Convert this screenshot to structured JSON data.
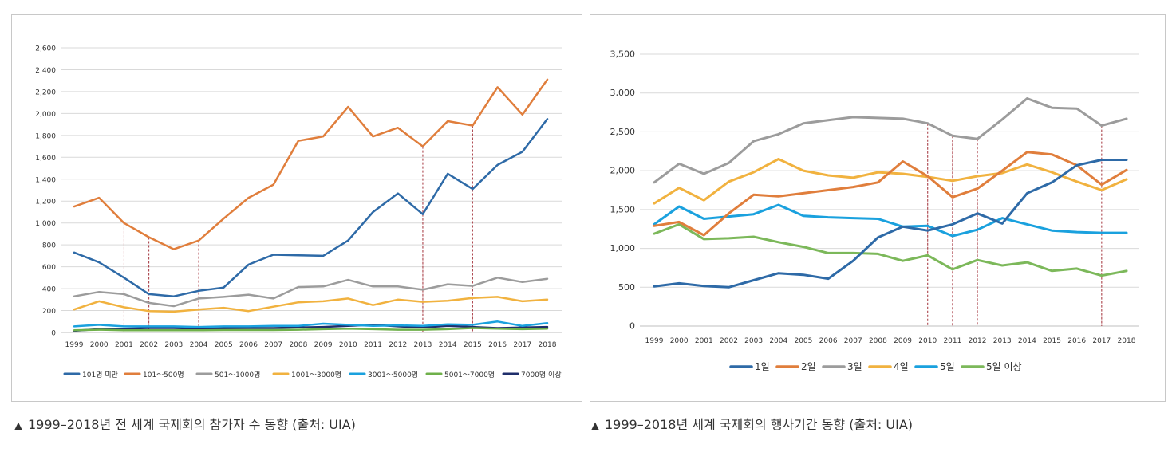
{
  "charts": [
    {
      "caption": "1999–2018년 전 세계 국제회의 참가자 수 동향 (출처: UIA)",
      "caption_marker": "▲",
      "chart_data": {
        "type": "line",
        "x": [
          "1999",
          "2000",
          "2001",
          "2002",
          "2003",
          "2004",
          "2005",
          "2006",
          "2007",
          "2008",
          "2009",
          "2010",
          "2011",
          "2012",
          "2013",
          "2014",
          "2015",
          "2016",
          "2017",
          "2018"
        ],
        "ylim": [
          0,
          2600
        ],
        "yticks": [
          0,
          200,
          400,
          600,
          800,
          1000,
          1200,
          1400,
          1600,
          1800,
          2000,
          2200,
          2400,
          2600
        ],
        "ytick_labels": [
          "0",
          "200",
          "400",
          "600",
          "800",
          "1,000",
          "1,200",
          "1,400",
          "1,600",
          "1,800",
          "2,000",
          "2,200",
          "2,400",
          "2,600"
        ],
        "grid": true,
        "legend_position": "bottom",
        "marked_years": [
          "2001",
          "2002",
          "2004",
          "2013",
          "2015"
        ],
        "marked_series": "101～500명",
        "series": [
          {
            "name": "101명 미만",
            "color": "#2e6aa7",
            "values": [
              730,
              640,
              500,
              350,
              330,
              380,
              410,
              620,
              710,
              705,
              700,
              840,
              1100,
              1270,
              1080,
              1450,
              1310,
              1530,
              1650,
              1950
            ]
          },
          {
            "name": "101～500명",
            "color": "#e07e3c",
            "values": [
              1150,
              1230,
              1000,
              870,
              760,
              840,
              1040,
              1230,
              1350,
              1750,
              1790,
              2060,
              1790,
              1870,
              1700,
              1930,
              1890,
              2240,
              1990,
              2310
            ]
          },
          {
            "name": "501～1000명",
            "color": "#9c9c9c",
            "values": [
              330,
              370,
              350,
              270,
              240,
              310,
              325,
              345,
              310,
              415,
              420,
              480,
              420,
              420,
              390,
              440,
              425,
              500,
              460,
              490
            ]
          },
          {
            "name": "1001～3000명",
            "color": "#f1b23f",
            "values": [
              210,
              285,
              230,
              195,
              190,
              210,
              225,
              195,
              235,
              275,
              285,
              310,
              250,
              300,
              280,
              290,
              315,
              325,
              285,
              300
            ]
          },
          {
            "name": "3001～5000명",
            "color": "#1aa1de",
            "values": [
              55,
              70,
              55,
              55,
              55,
              50,
              55,
              55,
              60,
              60,
              80,
              70,
              60,
              65,
              60,
              75,
              70,
              100,
              60,
              85
            ]
          },
          {
            "name": "5001～7000명",
            "color": "#6fb04a",
            "values": [
              20,
              25,
              20,
              20,
              20,
              20,
              22,
              22,
              22,
              25,
              30,
              35,
              30,
              25,
              25,
              30,
              40,
              35,
              30,
              35
            ]
          },
          {
            "name": "7000명 이상",
            "color": "#1f2e6b",
            "values": [
              15,
              30,
              35,
              40,
              40,
              35,
              38,
              40,
              40,
              45,
              50,
              60,
              70,
              55,
              45,
              60,
              50,
              40,
              45,
              50
            ]
          }
        ]
      }
    },
    {
      "caption": "1999–2018년 세계 국제회의 행사기간 동향 (출처: UIA)",
      "caption_marker": "▲",
      "chart_data": {
        "type": "line",
        "x": [
          "1999",
          "2000",
          "2001",
          "2002",
          "2003",
          "2004",
          "2005",
          "2006",
          "2007",
          "2008",
          "2009",
          "2010",
          "2011",
          "2012",
          "2013",
          "2014",
          "2015",
          "2016",
          "2017",
          "2018"
        ],
        "ylim": [
          0,
          3500
        ],
        "yticks": [
          0,
          500,
          1000,
          1500,
          2000,
          2500,
          3000,
          3500
        ],
        "ytick_labels": [
          "0",
          "500",
          "1,000",
          "1,500",
          "2,000",
          "2,500",
          "3,000",
          "3,500"
        ],
        "grid": true,
        "legend_position": "bottom",
        "marked_years": [
          "2010",
          "2011",
          "2012",
          "2017"
        ],
        "marked_series": "3일",
        "series": [
          {
            "name": "1일",
            "color": "#2e6aa7",
            "values": [
              510,
              550,
              515,
              500,
              590,
              680,
              660,
              610,
              840,
              1140,
              1280,
              1230,
              1310,
              1450,
              1320,
              1710,
              1850,
              2070,
              2140,
              2140
            ]
          },
          {
            "name": "2일",
            "color": "#e07e3c",
            "values": [
              1290,
              1340,
              1170,
              1450,
              1690,
              1670,
              1710,
              1750,
              1790,
              1850,
              2120,
              1930,
              1660,
              1770,
              2000,
              2240,
              2210,
              2070,
              1820,
              2010
            ]
          },
          {
            "name": "3일",
            "color": "#9c9c9c",
            "values": [
              1850,
              2090,
              1960,
              2100,
              2380,
              2470,
              2610,
              2650,
              2690,
              2680,
              2670,
              2610,
              2450,
              2410,
              2660,
              2930,
              2810,
              2800,
              2580,
              2670
            ]
          },
          {
            "name": "4일",
            "color": "#f1b23f",
            "values": [
              1580,
              1780,
              1620,
              1860,
              1980,
              2150,
              2000,
              1940,
              1910,
              1980,
              1960,
              1920,
              1870,
              1930,
              1970,
              2080,
              1980,
              1860,
              1750,
              1890
            ]
          },
          {
            "name": "5일",
            "color": "#1aa1de",
            "values": [
              1310,
              1540,
              1380,
              1410,
              1440,
              1560,
              1420,
              1400,
              1390,
              1380,
              1280,
              1290,
              1160,
              1240,
              1390,
              1310,
              1230,
              1210,
              1200,
              1200
            ]
          },
          {
            "name": "5일 이상",
            "color": "#7cb85a",
            "values": [
              1190,
              1310,
              1120,
              1130,
              1150,
              1080,
              1020,
              940,
              940,
              930,
              840,
              910,
              730,
              850,
              780,
              820,
              710,
              740,
              650,
              710
            ]
          }
        ]
      }
    }
  ]
}
